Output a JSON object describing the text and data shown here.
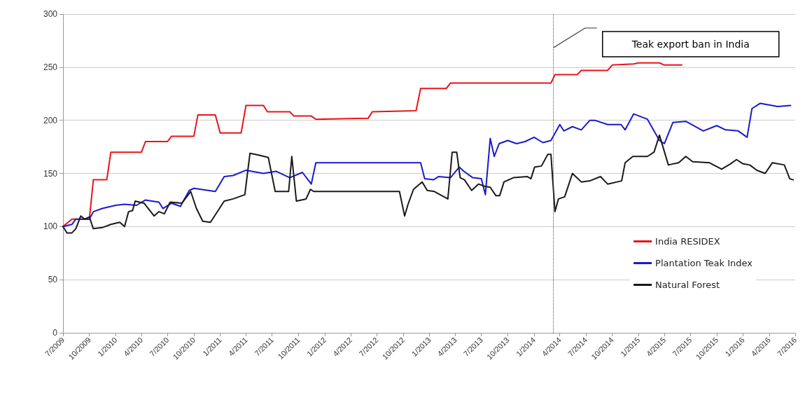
{
  "chart_data": {
    "type": "line",
    "marker": "none",
    "line_style": "solid",
    "grid": "y",
    "legend": "bottom right",
    "xlim": [
      "2009-07",
      "2016-07"
    ],
    "xticks": [
      {
        "value": "2009-07",
        "label": "7/2009"
      },
      {
        "value": "2009-10",
        "label": "10/2009"
      },
      {
        "value": "2010-01",
        "label": "1/2010"
      },
      {
        "value": "2010-04",
        "label": "4/2010"
      },
      {
        "value": "2010-07",
        "label": "7/2010"
      },
      {
        "value": "2010-10",
        "label": "10/2010"
      },
      {
        "value": "2011-01",
        "label": "1/2011"
      },
      {
        "value": "2011-04",
        "label": "4/2011"
      },
      {
        "value": "2011-07",
        "label": "7/2011"
      },
      {
        "value": "2011-10",
        "label": "10/2011"
      },
      {
        "value": "2012-01",
        "label": "1/2012"
      },
      {
        "value": "2012-04",
        "label": "4/2012"
      },
      {
        "value": "2012-07",
        "label": "7/2012"
      },
      {
        "value": "2012-10",
        "label": "10/2012"
      },
      {
        "value": "2013-01",
        "label": "1/2013"
      },
      {
        "value": "2013-04",
        "label": "4/2013"
      },
      {
        "value": "2013-07",
        "label": "7/2013"
      },
      {
        "value": "2013-10",
        "label": "10/2013"
      },
      {
        "value": "2014-01",
        "label": "1/2014"
      },
      {
        "value": "2014-04",
        "label": "4/2014"
      },
      {
        "value": "2014-07",
        "label": "7/2014"
      },
      {
        "value": "2014-10",
        "label": "10/2014"
      },
      {
        "value": "2015-01",
        "label": "1/2015"
      },
      {
        "value": "2015-04",
        "label": "4/2015"
      },
      {
        "value": "2015-07",
        "label": "7/2015"
      },
      {
        "value": "2015-10",
        "label": "10/2015"
      },
      {
        "value": "2016-01",
        "label": "1/2016"
      },
      {
        "value": "2016-04",
        "label": "4/2016"
      },
      {
        "value": "2016-07",
        "label": "7/2016"
      }
    ],
    "ylim": [
      0,
      300
    ],
    "yticks": [
      0,
      50,
      100,
      150,
      200,
      250,
      300
    ],
    "annotations": [
      "Teak export ban in India"
    ],
    "ref_lines": [
      {
        "axis": "x",
        "value": "2014-03-10",
        "line_style": "dotted",
        "color": "#555555"
      }
    ],
    "series": [
      {
        "name": "India RESIDEX",
        "color": "#e8141b",
        "x": [
          "2009-07-01",
          "2009-08-01",
          "2009-10-01",
          "2009-10-15",
          "2009-12-01",
          "2009-12-15",
          "2010-04-01",
          "2010-04-15",
          "2010-07-01",
          "2010-07-15",
          "2010-10-01",
          "2010-10-15",
          "2010-12-15",
          "2011-01-01",
          "2011-03-15",
          "2011-04-01",
          "2011-06-01",
          "2011-06-15",
          "2011-09-01",
          "2011-09-15",
          "2011-11-15",
          "2011-12-01",
          "2012-06-01",
          "2012-06-15",
          "2012-11-15",
          "2012-12-01",
          "2013-03-01",
          "2013-03-15",
          "2014-03-01",
          "2014-03-15",
          "2014-06-01",
          "2014-06-15",
          "2014-09-15",
          "2014-10-01",
          "2014-12-15",
          "2015-01-01",
          "2015-03-15",
          "2015-04-01",
          "2015-06-01"
        ],
        "values": [
          100,
          107,
          107,
          144,
          144,
          170,
          170,
          180,
          180,
          185,
          185,
          205,
          205,
          188,
          188,
          214,
          214,
          208,
          208,
          204,
          204,
          201,
          202,
          208,
          209,
          230,
          230,
          235,
          235,
          243,
          243,
          247,
          247,
          252,
          253,
          254,
          254,
          252,
          252
        ]
      },
      {
        "name": "Plantation Teak Index",
        "color": "#1a1acf",
        "x": [
          "2009-07-01",
          "2009-08-01",
          "2009-08-15",
          "2009-10-01",
          "2009-10-15",
          "2009-11-15",
          "2010-01-01",
          "2010-02-01",
          "2010-03-15",
          "2010-04-15",
          "2010-06-01",
          "2010-06-15",
          "2010-07-15",
          "2010-08-15",
          "2010-09-15",
          "2010-10-01",
          "2010-12-15",
          "2011-01-15",
          "2011-02-15",
          "2011-04-01",
          "2011-06-01",
          "2011-07-15",
          "2011-09-01",
          "2011-10-15",
          "2011-11-15",
          "2011-12-01",
          "2012-12-01",
          "2012-12-15",
          "2013-01-15",
          "2013-02-01",
          "2013-03-15",
          "2013-04-15",
          "2013-05-01",
          "2013-06-01",
          "2013-07-01",
          "2013-07-15",
          "2013-08-01",
          "2013-08-15",
          "2013-09-01",
          "2013-10-01",
          "2013-11-01",
          "2013-12-01",
          "2014-01-01",
          "2014-02-01",
          "2014-03-01",
          "2014-04-01",
          "2014-04-15",
          "2014-05-15",
          "2014-06-15",
          "2014-07-15",
          "2014-08-01",
          "2014-09-15",
          "2014-11-01",
          "2014-11-15",
          "2014-12-15",
          "2015-02-01",
          "2015-03-15",
          "2015-04-01",
          "2015-05-01",
          "2015-06-15",
          "2015-08-15",
          "2015-10-01",
          "2015-11-01",
          "2015-12-15",
          "2016-01-15",
          "2016-02-01",
          "2016-03-01",
          "2016-05-01",
          "2016-06-15"
        ],
        "values": [
          100,
          102,
          107,
          107,
          114,
          117,
          120,
          121,
          120,
          125,
          123,
          117,
          122,
          119,
          134,
          136,
          133,
          147,
          148,
          153,
          150,
          152,
          146,
          151,
          140,
          160,
          160,
          145,
          144,
          147,
          146,
          156,
          152,
          146,
          145,
          130,
          183,
          166,
          178,
          181,
          178,
          180,
          184,
          179,
          181,
          196,
          190,
          194,
          191,
          200,
          200,
          196,
          196,
          191,
          206,
          201,
          181,
          178,
          198,
          199,
          190,
          195,
          191,
          190,
          184,
          211,
          216,
          213,
          214
        ]
      },
      {
        "name": "Natural Forest",
        "color": "#1a1a1a",
        "x": [
          "2009-07-01",
          "2009-07-15",
          "2009-08-01",
          "2009-08-15",
          "2009-09-01",
          "2009-09-15",
          "2009-10-01",
          "2009-10-15",
          "2009-11-15",
          "2009-12-15",
          "2010-01-15",
          "2010-02-01",
          "2010-02-15",
          "2010-03-01",
          "2010-03-10",
          "2010-04-10",
          "2010-05-15",
          "2010-06-01",
          "2010-06-20",
          "2010-07-10",
          "2010-08-20",
          "2010-09-20",
          "2010-10-10",
          "2010-11-01",
          "2010-11-28",
          "2011-01-15",
          "2011-02-15",
          "2011-03-28",
          "2011-04-15",
          "2011-05-20",
          "2011-06-18",
          "2011-07-12",
          "2011-08-28",
          "2011-09-08",
          "2011-09-24",
          "2011-10-28",
          "2011-11-12",
          "2011-11-24",
          "2012-09-18",
          "2012-10-06",
          "2012-10-18",
          "2012-11-06",
          "2012-12-06",
          "2012-12-24",
          "2013-01-18",
          "2013-03-06",
          "2013-03-21",
          "2013-04-06",
          "2013-04-18",
          "2013-05-03",
          "2013-05-28",
          "2013-06-21",
          "2013-07-12",
          "2013-08-01",
          "2013-08-21",
          "2013-09-03",
          "2013-09-18",
          "2013-10-21",
          "2013-12-09",
          "2013-12-21",
          "2014-01-03",
          "2014-01-27",
          "2014-02-18",
          "2014-03-01",
          "2014-03-15",
          "2014-03-27",
          "2014-04-18",
          "2014-05-15",
          "2014-06-15",
          "2014-07-15",
          "2014-08-21",
          "2014-09-15",
          "2014-11-03",
          "2014-11-15",
          "2014-12-12",
          "2015-02-01",
          "2015-02-24",
          "2015-03-15",
          "2015-04-15",
          "2015-05-21",
          "2015-06-15",
          "2015-07-09",
          "2015-09-06",
          "2015-10-18",
          "2015-11-18",
          "2015-12-09",
          "2016-01-01",
          "2016-01-24",
          "2016-02-18",
          "2016-03-18",
          "2016-04-12",
          "2016-05-24",
          "2016-06-12",
          "2016-06-24"
        ],
        "values": [
          100,
          94,
          94,
          98,
          110,
          107,
          109,
          98,
          99,
          102,
          104,
          100,
          114,
          115,
          124,
          122,
          110,
          114,
          112,
          123,
          122,
          133,
          117,
          105,
          104,
          124,
          126,
          130,
          169,
          167,
          165,
          133,
          133,
          166,
          124,
          126,
          135,
          133,
          133,
          110,
          121,
          135,
          142,
          134,
          133,
          126,
          170,
          170,
          146,
          144,
          134,
          140,
          138,
          137,
          129,
          129,
          142,
          146,
          147,
          145,
          156,
          157,
          168,
          168,
          114,
          126,
          128,
          150,
          142,
          143,
          147,
          140,
          143,
          160,
          166,
          166,
          170,
          186,
          158,
          160,
          166,
          161,
          160,
          154,
          159,
          163,
          159,
          158,
          153,
          150,
          160,
          158,
          145,
          144
        ]
      }
    ]
  }
}
